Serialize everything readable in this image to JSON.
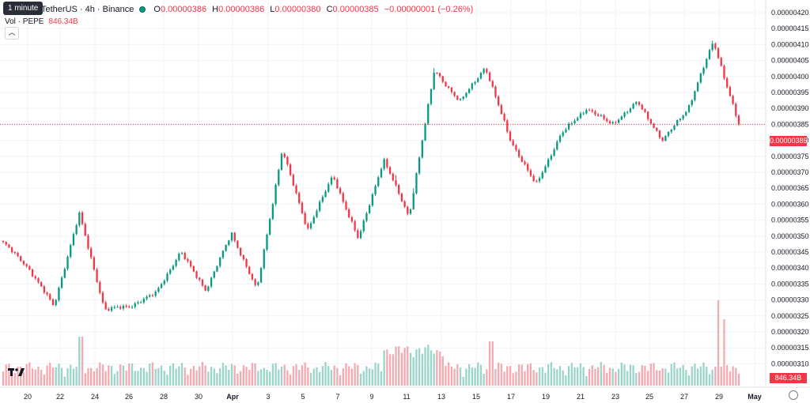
{
  "legend": {
    "tooltip": "1 minute",
    "pair": "TetherUS · 4h · Binance",
    "o_label": "O",
    "o_value": "0.00000386",
    "h_label": "H",
    "h_value": "0.00000386",
    "l_label": "L",
    "l_value": "0.00000380",
    "c_label": "C",
    "c_value": "0.00000385",
    "change": "−0.00000001 (−0.26%)",
    "vol_label": "Vol · PEPE",
    "vol_value": "846.34B",
    "collapse_icon": "chevron-up-icon"
  },
  "price_tag": "0.00000385",
  "vol_tag": "846.34B",
  "logo": "TradingView-logo",
  "colors": {
    "up": "#089981",
    "down": "#f23645",
    "vol_up": "#9ad5ca",
    "vol_down": "#f5a9b0",
    "grid": "#f0f3fa",
    "price_line": "#f23645"
  },
  "chart_data": {
    "type": "candlestick",
    "y_ticks": [
      "0.00000420",
      "0.00000415",
      "0.00000410",
      "0.00000405",
      "0.00000400",
      "0.00000395",
      "0.00000390",
      "0.00000385",
      "0.00000380",
      "0.00000375",
      "0.00000370",
      "0.00000365",
      "0.00000360",
      "0.00000355",
      "0.00000350",
      "0.00000345",
      "0.00000340",
      "0.00000335",
      "0.00000330",
      "0.00000325",
      "0.00000320",
      "0.00000315",
      "0.00000310"
    ],
    "x_ticks": [
      "20",
      "22",
      "24",
      "26",
      "28",
      "30",
      "Apr",
      "3",
      "5",
      "7",
      "9",
      "11",
      "13",
      "15",
      "17",
      "19",
      "21",
      "23",
      "25",
      "27",
      "29",
      "May"
    ],
    "ylim": [
      3.075e-06,
      4.225e-06
    ],
    "last_price": 3.85e-06,
    "candles_count": 252,
    "key_points": [
      {
        "x": "20",
        "close": 3.48e-06
      },
      {
        "x": "22",
        "close": 3.4e-06
      },
      {
        "x": "23",
        "close": 3.28e-06
      },
      {
        "x": "25",
        "close": 3.57e-06
      },
      {
        "x": "28",
        "close": 3.27e-06
      },
      {
        "x": "29",
        "close": 3.28e-06
      },
      {
        "x": "30",
        "close": 3.32e-06
      },
      {
        "x": "Apr",
        "close": 3.45e-06
      },
      {
        "x": "2",
        "close": 3.33e-06
      },
      {
        "x": "6",
        "close": 3.51e-06
      },
      {
        "x": "7",
        "close": 3.33e-06
      },
      {
        "x": "8",
        "close": 3.77e-06
      },
      {
        "x": "10",
        "close": 3.52e-06
      },
      {
        "x": "11",
        "close": 3.69e-06
      },
      {
        "x": "12",
        "close": 3.49e-06
      },
      {
        "x": "14",
        "close": 3.74e-06
      },
      {
        "x": "15",
        "close": 3.56e-06
      },
      {
        "x": "16",
        "close": 4.02e-06
      },
      {
        "x": "17",
        "close": 3.92e-06
      },
      {
        "x": "18",
        "close": 4.03e-06
      },
      {
        "x": "19",
        "close": 3.8e-06
      },
      {
        "x": "20",
        "close": 3.66e-06
      },
      {
        "x": "22",
        "close": 3.82e-06
      },
      {
        "x": "24",
        "close": 3.9e-06
      },
      {
        "x": "25",
        "close": 3.85e-06
      },
      {
        "x": "26",
        "close": 3.92e-06
      },
      {
        "x": "27",
        "close": 3.8e-06
      },
      {
        "x": "28",
        "close": 3.9e-06
      },
      {
        "x": "29",
        "close": 4.11e-06
      },
      {
        "x": "30",
        "close": 3.85e-06
      }
    ],
    "volume_peaks": [
      "24",
      "16",
      "18",
      "29"
    ],
    "volume_last": "846.34B"
  }
}
